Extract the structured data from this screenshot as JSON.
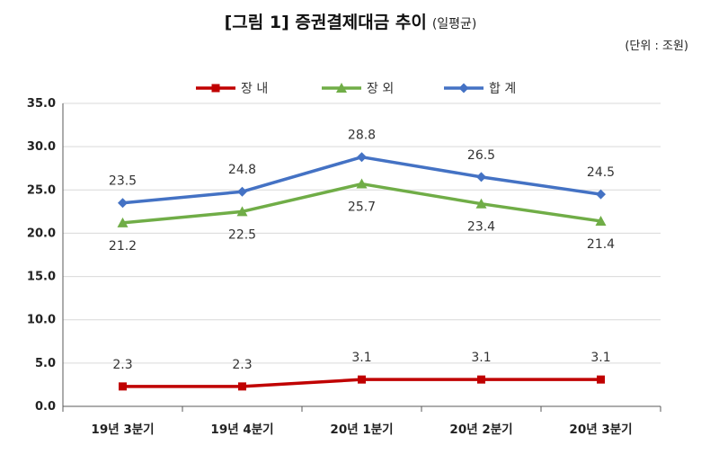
{
  "chart_data": {
    "type": "line",
    "title": "[그림 1] 증권결제대금 추이",
    "subtitle": "(일평균)",
    "unit": "(단위 : 조원)",
    "categories": [
      "19년 3분기",
      "19년 4분기",
      "20년 1분기",
      "20년 2분기",
      "20년 3분기"
    ],
    "yticks": [
      "0.0",
      "5.0",
      "10.0",
      "15.0",
      "20.0",
      "25.0",
      "30.0",
      "35.0"
    ],
    "ylim": [
      0,
      35
    ],
    "legend_position": "top",
    "series": [
      {
        "name": "장 내",
        "color": "#c00000",
        "marker": "square",
        "label_pos": "above",
        "values": [
          2.3,
          2.3,
          3.1,
          3.1,
          3.1
        ],
        "labels": [
          "2.3",
          "2.3",
          "3.1",
          "3.1",
          "3.1"
        ]
      },
      {
        "name": "장 외",
        "color": "#70ad47",
        "marker": "triangle",
        "label_pos": "below",
        "values": [
          21.2,
          22.5,
          25.7,
          23.4,
          21.4
        ],
        "labels": [
          "21.2",
          "22.5",
          "25.7",
          "23.4",
          "21.4"
        ]
      },
      {
        "name": "합 계",
        "color": "#4472c4",
        "marker": "diamond",
        "label_pos": "above",
        "values": [
          23.5,
          24.8,
          28.8,
          26.5,
          24.5
        ],
        "labels": [
          "23.5",
          "24.8",
          "28.8",
          "26.5",
          "24.5"
        ]
      }
    ]
  }
}
